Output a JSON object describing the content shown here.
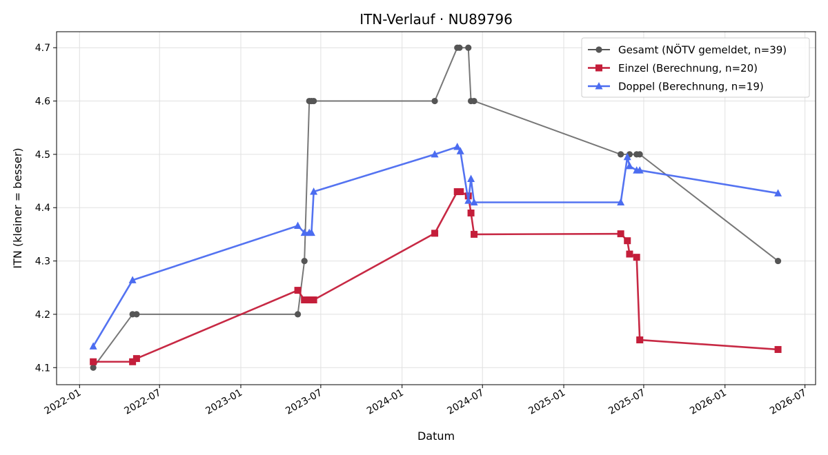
{
  "chart_data": {
    "type": "line",
    "title": "ITN-Verlauf · NU89796",
    "xlabel": "Datum",
    "ylabel": "ITN  (kleiner = besser)",
    "x_type": "date",
    "xlim": [
      "2021-11-10",
      "2026-07-25"
    ],
    "ylim": [
      4.068,
      4.73
    ],
    "x_ticks": [
      "2022-01-01",
      "2022-07-01",
      "2023-01-01",
      "2023-07-01",
      "2024-01-01",
      "2024-07-01",
      "2025-01-01",
      "2025-07-01",
      "2026-01-01",
      "2026-07-01"
    ],
    "x_tick_labels": [
      "2022-01",
      "2022-07",
      "2023-01",
      "2023-07",
      "2024-01",
      "2024-07",
      "2025-01",
      "2025-07",
      "2026-01",
      "2026-07"
    ],
    "y_ticks": [
      4.1,
      4.2,
      4.3,
      4.4,
      4.5,
      4.6,
      4.7
    ],
    "y_tick_labels": [
      "4.1",
      "4.2",
      "4.3",
      "4.4",
      "4.5",
      "4.6",
      "4.7"
    ],
    "grid": true,
    "legend_position": "top-right",
    "series": [
      {
        "name": "Gesamt (NÖTV gemeldet, n=39)",
        "color": "#555555",
        "marker": "circle",
        "points": [
          [
            "2022-02-01",
            4.1
          ],
          [
            "2022-05-01",
            4.2
          ],
          [
            "2022-05-10",
            4.2
          ],
          [
            "2023-05-10",
            4.2
          ],
          [
            "2023-05-25",
            4.3
          ],
          [
            "2023-06-05",
            4.6
          ],
          [
            "2023-06-10",
            4.6
          ],
          [
            "2023-06-15",
            4.6
          ],
          [
            "2024-03-15",
            4.6
          ],
          [
            "2024-05-05",
            4.7
          ],
          [
            "2024-05-10",
            4.7
          ],
          [
            "2024-05-30",
            4.7
          ],
          [
            "2024-06-05",
            4.6
          ],
          [
            "2024-06-12",
            4.6
          ],
          [
            "2025-05-10",
            4.5
          ],
          [
            "2025-05-30",
            4.5
          ],
          [
            "2025-06-15",
            4.5
          ],
          [
            "2025-06-22",
            4.5
          ],
          [
            "2026-05-01",
            4.3
          ]
        ]
      },
      {
        "name": "Einzel (Berechnung, n=20)",
        "color": "#c41e3a",
        "marker": "square",
        "points": [
          [
            "2022-02-01",
            4.111
          ],
          [
            "2022-05-01",
            4.111
          ],
          [
            "2022-05-10",
            4.117
          ],
          [
            "2023-05-10",
            4.245
          ],
          [
            "2023-05-25",
            4.227
          ],
          [
            "2023-06-05",
            4.227
          ],
          [
            "2023-06-10",
            4.227
          ],
          [
            "2023-06-15",
            4.227
          ],
          [
            "2024-03-15",
            4.352
          ],
          [
            "2024-05-05",
            4.43
          ],
          [
            "2024-05-12",
            4.43
          ],
          [
            "2024-05-30",
            4.422
          ],
          [
            "2024-06-05",
            4.39
          ],
          [
            "2024-06-12",
            4.35
          ],
          [
            "2025-05-10",
            4.351
          ],
          [
            "2025-05-25",
            4.338
          ],
          [
            "2025-05-30",
            4.313
          ],
          [
            "2025-06-15",
            4.307
          ],
          [
            "2025-06-22",
            4.152
          ],
          [
            "2026-05-01",
            4.134
          ]
        ]
      },
      {
        "name": "Doppel (Berechnung, n=19)",
        "color": "#4b6cf0",
        "marker": "triangle",
        "points": [
          [
            "2022-02-01",
            4.14
          ],
          [
            "2022-05-01",
            4.264
          ],
          [
            "2023-05-10",
            4.366
          ],
          [
            "2023-05-25",
            4.353
          ],
          [
            "2023-06-05",
            4.353
          ],
          [
            "2023-06-10",
            4.353
          ],
          [
            "2023-06-15",
            4.43
          ],
          [
            "2024-03-15",
            4.5
          ],
          [
            "2024-05-05",
            4.514
          ],
          [
            "2024-05-12",
            4.506
          ],
          [
            "2024-05-30",
            4.413
          ],
          [
            "2024-06-05",
            4.454
          ],
          [
            "2024-06-12",
            4.41
          ],
          [
            "2025-05-10",
            4.41
          ],
          [
            "2025-05-25",
            4.495
          ],
          [
            "2025-05-30",
            4.478
          ],
          [
            "2025-06-15",
            4.47
          ],
          [
            "2025-06-22",
            4.47
          ],
          [
            "2026-05-01",
            4.427
          ]
        ]
      }
    ]
  }
}
